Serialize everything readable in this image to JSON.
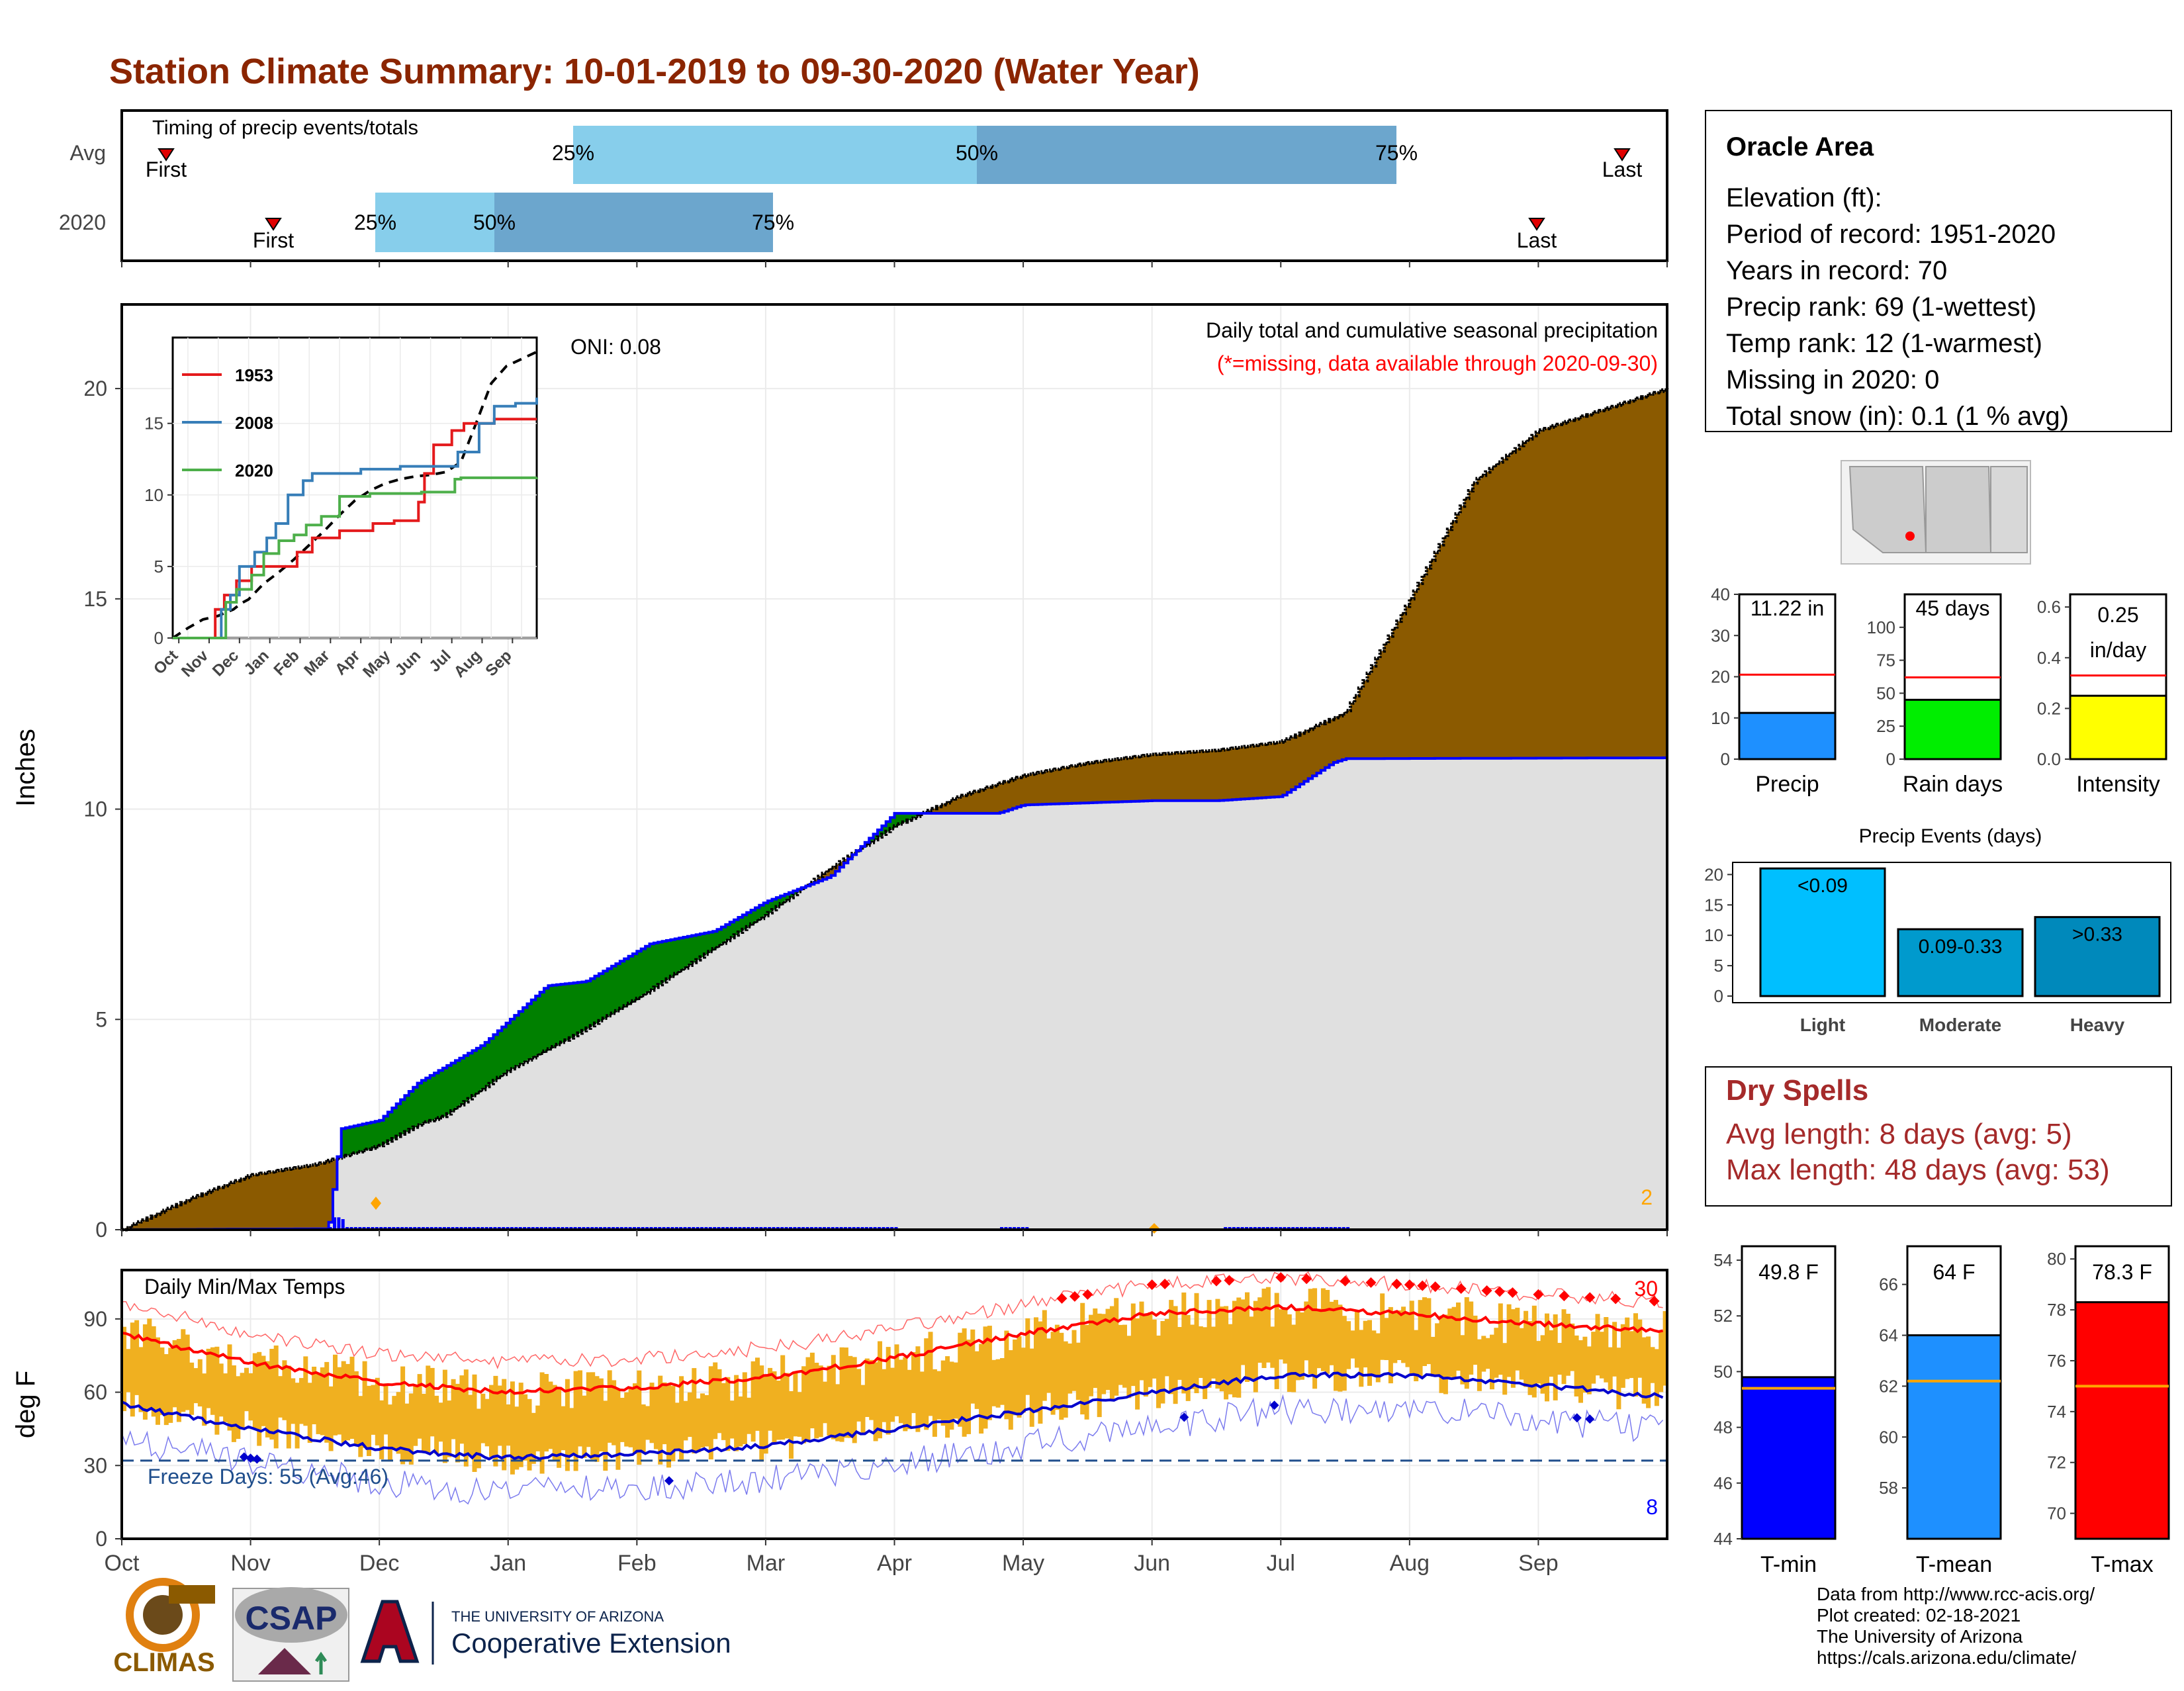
{
  "title": "Station Climate Summary: 10-01-2019 to 09-30-2020 (Water Year)",
  "colors": {
    "title": "#8b2500",
    "deficit": "#8b5a00",
    "surplus": "#008000",
    "current": "#0000ff",
    "grey_fill": "#e0e0e0",
    "quartile_light": "#87ceeb",
    "quartile_dark": "#6ca6cd",
    "temp_bar": "#f0b020",
    "dry_spells": "#a52a2a",
    "missing_note": "#ff0000"
  },
  "timing": {
    "label": "Timing of precip events/totals",
    "rows": [
      {
        "name": "Avg",
        "first_label": "First",
        "last_label": "Last",
        "q25": "25%",
        "q50": "50%",
        "q75": "75%"
      },
      {
        "name": "2020",
        "first_label": "First",
        "last_label": "Last",
        "q25": "25%",
        "q50": "50%",
        "q75": "75%"
      }
    ]
  },
  "precip_panel": {
    "ylabel": "Inches",
    "yticks": [
      "0",
      "5",
      "10",
      "15",
      "20"
    ],
    "header_line1": "Daily total and cumulative seasonal precipitation",
    "header_line2": "(*=missing, data available through 2020-09-30)",
    "oni": "ONI: 0.08",
    "corner_count": "2"
  },
  "inset": {
    "legend": [
      "1953",
      "2008",
      "2020"
    ],
    "yticks": [
      "0",
      "5",
      "10",
      "15"
    ],
    "xticks": [
      "Oct",
      "Nov",
      "Dec",
      "Jan",
      "Feb",
      "Mar",
      "Apr",
      "May",
      "Jun",
      "Jul",
      "Aug",
      "Sep"
    ]
  },
  "temp_panel": {
    "ylabel": "deg F",
    "yticks": [
      "0",
      "30",
      "60",
      "90"
    ],
    "title": "Daily Min/Max Temps",
    "freeze_text": "Freeze Days: 55 (Avg:46)",
    "hot_count": "30",
    "cold_count": "8"
  },
  "months": [
    "Oct",
    "Nov",
    "Dec",
    "Jan",
    "Feb",
    "Mar",
    "Apr",
    "May",
    "Jun",
    "Jul",
    "Aug",
    "Sep"
  ],
  "station": {
    "name": "Oracle Area",
    "lines": [
      "Elevation (ft):",
      "Period of record: 1951-2020",
      "Years in record: 70",
      "Precip rank: 69 (1-wettest)",
      "Temp rank: 12 (1-warmest)",
      "Missing in 2020: 0",
      "Total snow (in): 0.1 (1 % avg)"
    ]
  },
  "stat_bars": [
    {
      "label": "Precip",
      "value_text": "11.22 in",
      "value": 11.22,
      "avg": 20.5,
      "max": 40,
      "ticks": [
        "0",
        "10",
        "20",
        "30",
        "40"
      ],
      "color": "#1e90ff"
    },
    {
      "label": "Rain days",
      "value_text": "45 days",
      "value": 45,
      "avg": 62,
      "max": 125,
      "ticks": [
        "0",
        "25",
        "50",
        "75",
        "100"
      ],
      "color": "#00ee00"
    },
    {
      "label": "Intensity",
      "value_text": "0.25 in/day",
      "value": 0.25,
      "avg": 0.33,
      "max": 0.65,
      "ticks": [
        "0.0",
        "0.2",
        "0.4",
        "0.6"
      ],
      "color": "#ffff00"
    }
  ],
  "precip_events": {
    "title": "Precip Events (days)",
    "yticks": [
      "0",
      "5",
      "10",
      "15",
      "20"
    ],
    "categories": [
      "Light",
      "Moderate",
      "Heavy"
    ],
    "bar_labels": [
      "<0.09",
      "0.09-0.33",
      ">0.33"
    ],
    "values": [
      21,
      11,
      13
    ],
    "colors": [
      "#00bfff",
      "#009acd",
      "#0089bb"
    ]
  },
  "dry_spells": {
    "title": "Dry Spells",
    "line1": "Avg length: 8 days (avg: 5)",
    "line2": "Max length: 48 days (avg: 53)"
  },
  "temp_bars": [
    {
      "label": "T-min",
      "value_text": "49.8 F",
      "value": 49.8,
      "avg": 49.4,
      "min": 44,
      "max": 54.5,
      "ticks": [
        "44",
        "46",
        "48",
        "50",
        "52",
        "54"
      ],
      "tickvals": [
        44,
        46,
        48,
        50,
        52,
        54
      ],
      "color": "#0000ff"
    },
    {
      "label": "T-mean",
      "value_text": "64 F",
      "value": 64.0,
      "avg": 62.2,
      "min": 56,
      "max": 67.5,
      "ticks": [
        "58",
        "60",
        "62",
        "64",
        "66"
      ],
      "tickvals": [
        58,
        60,
        62,
        64,
        66
      ],
      "color": "#1e90ff"
    },
    {
      "label": "T-max",
      "value_text": "78.3 F",
      "value": 78.3,
      "avg": 75.0,
      "min": 69,
      "max": 80.5,
      "ticks": [
        "70",
        "72",
        "74",
        "76",
        "78",
        "80"
      ],
      "tickvals": [
        70,
        72,
        74,
        76,
        78,
        80
      ],
      "color": "#ff0000"
    }
  ],
  "footer": {
    "lines": [
      "Data from http://www.rcc-acis.org/",
      "Plot created: 02-18-2021",
      "The University of Arizona",
      "https://cals.arizona.edu/climate/"
    ],
    "climas": "CLIMAS",
    "csap": "CSAP",
    "ua_top": "THE UNIVERSITY OF ARIZONA",
    "ua_bottom": "Cooperative Extension"
  },
  "chart_data": [
    {
      "type": "area",
      "title": "Daily total and cumulative seasonal precipitation",
      "ylabel": "Inches",
      "ylim": [
        0,
        22
      ],
      "series": [
        {
          "name": "Avg cumulative",
          "x": [
            0,
            0.5,
            1,
            1.5,
            2,
            2.3,
            2.5,
            3,
            3.5,
            4,
            4.5,
            5,
            5.5,
            6,
            6.5,
            7,
            7.5,
            8,
            8.5,
            9,
            9.5,
            10,
            10.5,
            11,
            11.5,
            12
          ],
          "values": [
            0,
            0.7,
            1.3,
            1.55,
            2.0,
            2.5,
            2.7,
            3.8,
            4.6,
            5.5,
            6.5,
            7.5,
            8.6,
            9.6,
            10.3,
            10.8,
            11.1,
            11.3,
            11.4,
            11.6,
            12.3,
            15.0,
            17.8,
            19.0,
            19.5,
            20.0
          ]
        },
        {
          "name": "2020 cumulative",
          "x": [
            0,
            1.6,
            1.7,
            2.0,
            2.3,
            2.8,
            3.3,
            3.6,
            4.1,
            4.6,
            5.0,
            5.5,
            6.0,
            6.8,
            7.0,
            8.0,
            8.5,
            9.0,
            9.4,
            9.5,
            12.0
          ],
          "values": [
            0,
            0.02,
            2.4,
            2.6,
            3.5,
            4.4,
            5.8,
            5.9,
            6.8,
            7.1,
            7.8,
            8.4,
            9.9,
            9.9,
            10.1,
            10.2,
            10.2,
            10.3,
            11.1,
            11.2,
            11.22
          ]
        }
      ]
    },
    {
      "type": "line",
      "title": "Daily Min/Max Temps",
      "ylabel": "deg F",
      "ylim": [
        0,
        110
      ],
      "x": [
        0,
        1,
        2,
        3,
        4,
        5,
        6,
        7,
        8,
        9,
        10,
        11,
        12
      ],
      "series": [
        {
          "name": "Avg max",
          "values": [
            84,
            72,
            64,
            60,
            62,
            66,
            74,
            84,
            92,
            95,
            92,
            88,
            85
          ]
        },
        {
          "name": "Avg min",
          "values": [
            55,
            45,
            37,
            33,
            35,
            38,
            45,
            52,
            60,
            67,
            67,
            63,
            58
          ]
        }
      ],
      "freeze_line": 32
    }
  ]
}
